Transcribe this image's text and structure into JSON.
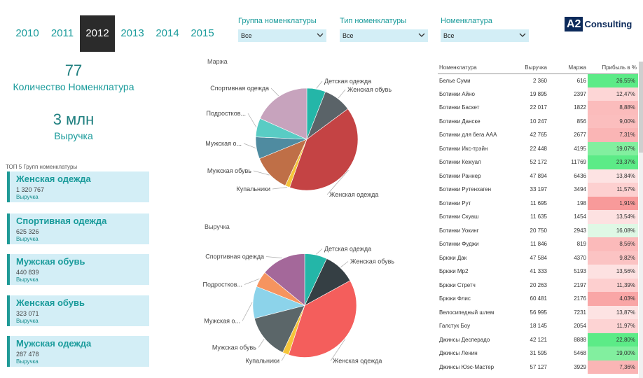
{
  "years": {
    "items": [
      "2010",
      "2011",
      "2012",
      "2013",
      "2014",
      "2015"
    ],
    "selected": "2012"
  },
  "kpi": {
    "count_value": "77",
    "count_label": "Количество Номенклатура",
    "revenue_value": "3 млн",
    "revenue_label": "Выручка"
  },
  "top5": {
    "title": "ТОП 5 Групп номенклатуры",
    "items": [
      {
        "name": "Женская одежда",
        "value": "1 320 767",
        "label": "Выручка"
      },
      {
        "name": "Спортивная одежда",
        "value": "625 326",
        "label": "Выручка"
      },
      {
        "name": "Мужская обувь",
        "value": "440 839",
        "label": "Выручка"
      },
      {
        "name": "Женская обувь",
        "value": "323 071",
        "label": "Выручка"
      },
      {
        "name": "Мужская одежда",
        "value": "287 478",
        "label": "Выручка"
      }
    ]
  },
  "filters": [
    {
      "label": "Группа номенклатуры",
      "value": "Все"
    },
    {
      "label": "Тип номенклатуры",
      "value": "Все"
    },
    {
      "label": "Номенклатура",
      "value": "Все"
    }
  ],
  "logo": {
    "box": "A2",
    "text": "Consulting"
  },
  "chart_data": [
    {
      "type": "pie",
      "title": "Маржа",
      "categories": [
        "Детская одежда",
        "Женская обувь",
        "Женская одежда",
        "Купальники",
        "Мужская обувь",
        "Мужская о...",
        "Подростков...",
        "Спортивная одежда"
      ],
      "values": [
        6,
        9,
        41,
        1.5,
        12,
        7,
        6,
        18.5
      ],
      "colors": [
        "#24b6a8",
        "#5a6368",
        "#c44344",
        "#f5c53a",
        "#bf6f47",
        "#4f8ba0",
        "#59ccc4",
        "#c7a3bd"
      ]
    },
    {
      "type": "pie",
      "title": "Выручка",
      "categories": [
        "Детская одежда",
        "Женская обувь",
        "Женская одежда",
        "Купальники",
        "Мужская обувь",
        "Мужская о...",
        "Подростков...",
        "Спортивная одежда"
      ],
      "values": [
        7,
        10,
        38,
        2,
        14,
        10,
        5,
        14
      ],
      "colors": [
        "#24b6a8",
        "#353f44",
        "#f45e5c",
        "#f5c53a",
        "#5b6669",
        "#8cd3ea",
        "#f6945f",
        "#a4689a"
      ]
    }
  ],
  "table": {
    "headers": [
      "Номенклатура",
      "Выручка",
      "Маржа",
      "Прибыль в %"
    ],
    "rows": [
      {
        "name": "Белье Суми",
        "revenue": "2 360",
        "margin": "616",
        "profit": "26,55%",
        "color": "#5ceb87"
      },
      {
        "name": "Ботинки Айно",
        "revenue": "19 895",
        "margin": "2397",
        "profit": "12,47%",
        "color": "#fdd6d6"
      },
      {
        "name": "Ботинки Баскет",
        "revenue": "22 017",
        "margin": "1822",
        "profit": "8,88%",
        "color": "#fbbcbc"
      },
      {
        "name": "Ботинки Данске",
        "revenue": "10 247",
        "margin": "856",
        "profit": "9,00%",
        "color": "#fbbebe"
      },
      {
        "name": "Ботинки для бега AAA",
        "revenue": "42 765",
        "margin": "2677",
        "profit": "7,31%",
        "color": "#fab5b5"
      },
      {
        "name": "Ботинки Икс-трэйн",
        "revenue": "22 448",
        "margin": "4195",
        "profit": "19,07%",
        "color": "#82ef9f"
      },
      {
        "name": "Ботинки Кежуал",
        "revenue": "52 172",
        "margin": "11769",
        "profit": "23,37%",
        "color": "#5ceb87"
      },
      {
        "name": "Ботинки Раннер",
        "revenue": "47 894",
        "margin": "6436",
        "profit": "13,84%",
        "color": "#fde3e3"
      },
      {
        "name": "Ботинки Рутенхаген",
        "revenue": "33 197",
        "margin": "3494",
        "profit": "11,57%",
        "color": "#fdd0d0"
      },
      {
        "name": "Ботинки Рут",
        "revenue": "11 695",
        "margin": "198",
        "profit": "1,91%",
        "color": "#f89a9a"
      },
      {
        "name": "Ботинки Скуаш",
        "revenue": "11 635",
        "margin": "1454",
        "profit": "13,54%",
        "color": "#fde1e1"
      },
      {
        "name": "Ботинки Уокинг",
        "revenue": "20 750",
        "margin": "2943",
        "profit": "16,08%",
        "color": "#dff8e5"
      },
      {
        "name": "Ботинки Фуджи",
        "revenue": "11 846",
        "margin": "819",
        "profit": "8,56%",
        "color": "#fbbaba"
      },
      {
        "name": "Брюки Дак",
        "revenue": "47 584",
        "margin": "4370",
        "profit": "9,82%",
        "color": "#fbc3c3"
      },
      {
        "name": "Брюки Мр2",
        "revenue": "41 333",
        "margin": "5193",
        "profit": "13,56%",
        "color": "#fde1e1"
      },
      {
        "name": "Брюки Стретч",
        "revenue": "20 263",
        "margin": "2197",
        "profit": "11,39%",
        "color": "#fdcfcf"
      },
      {
        "name": "Брюки Флис",
        "revenue": "60 481",
        "margin": "2176",
        "profit": "4,03%",
        "color": "#f9a6a6"
      },
      {
        "name": "Велосипедный шлем",
        "revenue": "56 995",
        "margin": "7231",
        "profit": "13,87%",
        "color": "#fde3e3"
      },
      {
        "name": "Галстук Боу",
        "revenue": "18 145",
        "margin": "2054",
        "profit": "11,97%",
        "color": "#fdd3d3"
      },
      {
        "name": "Джинсы Десперадо",
        "revenue": "42 121",
        "margin": "8888",
        "profit": "22,80%",
        "color": "#5ceb87"
      },
      {
        "name": "Джинсы Ленин",
        "revenue": "31 595",
        "margin": "5468",
        "profit": "19,00%",
        "color": "#82ef9f"
      },
      {
        "name": "Джинсы Юэс-Мастер",
        "revenue": "57 127",
        "margin": "3929",
        "profit": "7,36%",
        "color": "#fab5b5"
      }
    ]
  }
}
